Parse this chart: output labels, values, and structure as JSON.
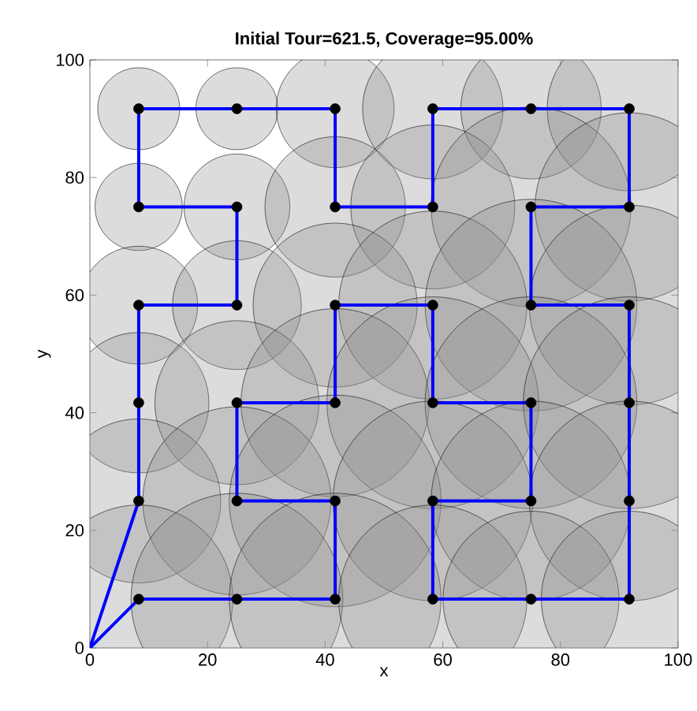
{
  "chart_data": {
    "type": "scatter",
    "title": "Initial Tour=621.5, Coverage=95.00%",
    "xlabel": "x",
    "ylabel": "y",
    "xlim": [
      0,
      100
    ],
    "ylim": [
      0,
      100
    ],
    "xticks": [
      0,
      20,
      40,
      60,
      80,
      100
    ],
    "yticks": [
      0,
      20,
      40,
      60,
      80,
      100
    ],
    "grid": false,
    "series": [
      {
        "type": "bubble",
        "color": "#8c8c8c",
        "x": [
          8.3,
          25,
          41.7,
          58.3,
          75,
          91.7,
          8.3,
          25,
          41.7,
          58.3,
          75,
          91.7,
          8.3,
          25,
          41.7,
          58.3,
          75,
          91.7,
          8.3,
          25,
          41.7,
          58.3,
          75,
          91.7,
          8.3,
          25,
          41.7,
          58.3,
          75,
          91.7,
          8.3,
          25,
          41.7,
          58.3,
          75,
          91.7
        ],
        "values": [
          91.7,
          91.7,
          91.7,
          91.7,
          91.7,
          91.7,
          75,
          75,
          75,
          75,
          75,
          75,
          58.3,
          58.3,
          58.3,
          58.3,
          58.3,
          58.3,
          41.7,
          41.7,
          41.7,
          41.7,
          41.7,
          41.7,
          25,
          25,
          25,
          25,
          25,
          25,
          8.3,
          8.3,
          8.3,
          8.3,
          8.3,
          8.3
        ],
        "sizes": [
          0.15,
          0.15,
          0.31,
          0.44,
          0.44,
          0.6,
          0.17,
          0.25,
          0.44,
          0.6,
          0.89,
          0.79,
          0.31,
          0.37,
          0.6,
          0.79,
          1,
          0.89,
          0.44,
          0.6,
          0.79,
          1,
          1,
          1,
          0.6,
          0.79,
          1,
          0.89,
          0.89,
          0.89,
          0.79,
          1,
          1,
          0.79,
          0.69,
          0.69
        ]
      },
      {
        "type": "line",
        "color": "#0000ff",
        "marker": "none",
        "line_style": "solid",
        "x": [
          0,
          8.3,
          25,
          41.7,
          41.7,
          25,
          25,
          41.7,
          41.7,
          58.3,
          58.3,
          75,
          75,
          58.3,
          58.3,
          75,
          91.7,
          91.7,
          91.7,
          91.7,
          75,
          75,
          91.7,
          91.7,
          75,
          58.3,
          58.3,
          41.7,
          41.7,
          25,
          8.3,
          8.3,
          25,
          25,
          8.3,
          8.3,
          8.3
        ],
        "values": [
          0,
          8.3,
          8.3,
          8.3,
          25,
          25,
          41.7,
          41.7,
          58.3,
          58.3,
          41.7,
          41.7,
          25,
          25,
          8.3,
          8.3,
          8.3,
          25,
          41.7,
          58.3,
          58.3,
          75,
          75,
          91.7,
          91.7,
          91.7,
          75,
          75,
          91.7,
          91.7,
          91.7,
          75,
          75,
          58.3,
          58.3,
          41.7,
          25
        ]
      },
      {
        "type": "line",
        "color": "#0000ff",
        "marker": "none",
        "line_style": "solid",
        "x": [
          8.3,
          0
        ],
        "values": [
          25,
          0
        ]
      },
      {
        "color": "#000000",
        "marker": "circle",
        "x": [
          8.3,
          25,
          41.7,
          58.3,
          75,
          91.7,
          8.3,
          25,
          41.7,
          58.3,
          75,
          91.7,
          8.3,
          25,
          41.7,
          58.3,
          75,
          91.7,
          8.3,
          25,
          41.7,
          58.3,
          75,
          91.7,
          8.3,
          25,
          41.7,
          58.3,
          75,
          91.7,
          8.3,
          25,
          41.7,
          58.3,
          75,
          91.7
        ],
        "values": [
          91.7,
          91.7,
          91.7,
          91.7,
          91.7,
          91.7,
          75,
          75,
          75,
          75,
          75,
          75,
          58.3,
          58.3,
          58.3,
          58.3,
          58.3,
          58.3,
          41.7,
          41.7,
          41.7,
          41.7,
          41.7,
          41.7,
          25,
          25,
          25,
          25,
          25,
          25,
          8.3,
          8.3,
          8.3,
          8.3,
          8.3,
          8.3
        ]
      }
    ]
  }
}
